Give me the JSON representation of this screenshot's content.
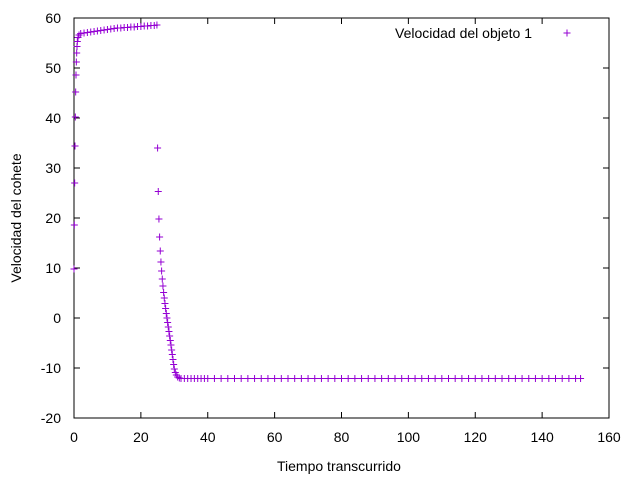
{
  "chart_data": {
    "type": "scatter",
    "title": "",
    "xlabel": "Tiempo transcurrido",
    "ylabel": "Velocidad del cohete",
    "xlim": [
      0,
      160
    ],
    "ylim": [
      -20,
      60
    ],
    "xticks": [
      0,
      20,
      40,
      60,
      80,
      100,
      120,
      140,
      160
    ],
    "yticks": [
      -20,
      -10,
      0,
      10,
      20,
      30,
      40,
      50,
      60
    ],
    "x_tick_labels": [
      "0",
      "20",
      "40",
      "60",
      "80",
      "100",
      "120",
      "140",
      "160"
    ],
    "y_tick_labels": [
      "-20",
      "-10",
      "0",
      "10",
      "20",
      "30",
      "40",
      "50",
      "60"
    ],
    "grid": false,
    "legend_position": "top-right",
    "marker": "plus",
    "series": [
      {
        "name": "Velocidad del objeto 1",
        "color": "#9400d3",
        "points": [
          [
            0.0,
            9.8
          ],
          [
            0.1,
            18.6
          ],
          [
            0.2,
            27.0
          ],
          [
            0.3,
            34.4
          ],
          [
            0.4,
            40.2
          ],
          [
            0.5,
            45.2
          ],
          [
            0.6,
            48.6
          ],
          [
            0.7,
            51.2
          ],
          [
            0.8,
            53.0
          ],
          [
            0.9,
            54.3
          ],
          [
            1.0,
            55.3
          ],
          [
            1.2,
            56.1
          ],
          [
            1.5,
            56.6
          ],
          [
            2.0,
            56.9
          ],
          [
            3.0,
            57.0
          ],
          [
            4.0,
            57.1
          ],
          [
            5.0,
            57.2
          ],
          [
            6.0,
            57.3
          ],
          [
            7.0,
            57.4
          ],
          [
            8.0,
            57.5
          ],
          [
            9.0,
            57.6
          ],
          [
            10.0,
            57.7
          ],
          [
            11.0,
            57.8
          ],
          [
            12.0,
            57.9
          ],
          [
            13.0,
            58.0
          ],
          [
            14.0,
            58.0
          ],
          [
            15.0,
            58.1
          ],
          [
            16.0,
            58.1
          ],
          [
            17.0,
            58.2
          ],
          [
            18.0,
            58.2
          ],
          [
            19.0,
            58.3
          ],
          [
            20.0,
            58.3
          ],
          [
            21.0,
            58.4
          ],
          [
            22.0,
            58.4
          ],
          [
            23.0,
            58.5
          ],
          [
            24.0,
            58.5
          ],
          [
            24.8,
            58.6
          ],
          [
            25.0,
            34.0
          ],
          [
            25.2,
            25.3
          ],
          [
            25.4,
            19.8
          ],
          [
            25.6,
            16.2
          ],
          [
            25.8,
            13.4
          ],
          [
            26.0,
            11.2
          ],
          [
            26.2,
            9.4
          ],
          [
            26.4,
            7.8
          ],
          [
            26.6,
            6.4
          ],
          [
            26.8,
            5.1
          ],
          [
            27.0,
            4.0
          ],
          [
            27.2,
            2.9
          ],
          [
            27.4,
            1.9
          ],
          [
            27.6,
            0.9
          ],
          [
            27.8,
            0.0
          ],
          [
            28.0,
            -0.9
          ],
          [
            28.2,
            -1.8
          ],
          [
            28.4,
            -2.7
          ],
          [
            28.6,
            -3.6
          ],
          [
            28.8,
            -4.5
          ],
          [
            29.0,
            -5.4
          ],
          [
            29.2,
            -6.4
          ],
          [
            29.4,
            -7.3
          ],
          [
            29.6,
            -8.3
          ],
          [
            29.8,
            -9.3
          ],
          [
            30.0,
            -10.2
          ],
          [
            30.3,
            -10.9
          ],
          [
            30.6,
            -11.4
          ],
          [
            31.0,
            -11.8
          ],
          [
            31.5,
            -12.0
          ],
          [
            32.0,
            -12.1
          ],
          [
            33.0,
            -12.1
          ],
          [
            34.0,
            -12.1
          ],
          [
            35.0,
            -12.1
          ],
          [
            36.0,
            -12.1
          ],
          [
            37.0,
            -12.1
          ],
          [
            38.0,
            -12.1
          ],
          [
            39.0,
            -12.1
          ],
          [
            40.0,
            -12.1
          ],
          [
            42.0,
            -12.1
          ],
          [
            44.0,
            -12.1
          ],
          [
            46.0,
            -12.1
          ],
          [
            48.0,
            -12.1
          ],
          [
            50.0,
            -12.1
          ],
          [
            52.0,
            -12.1
          ],
          [
            54.0,
            -12.1
          ],
          [
            56.0,
            -12.1
          ],
          [
            58.0,
            -12.1
          ],
          [
            60.0,
            -12.1
          ],
          [
            62.0,
            -12.1
          ],
          [
            64.0,
            -12.1
          ],
          [
            66.0,
            -12.1
          ],
          [
            68.0,
            -12.1
          ],
          [
            70.0,
            -12.1
          ],
          [
            72.0,
            -12.1
          ],
          [
            74.0,
            -12.1
          ],
          [
            76.0,
            -12.1
          ],
          [
            78.0,
            -12.1
          ],
          [
            80.0,
            -12.1
          ],
          [
            82.0,
            -12.1
          ],
          [
            84.0,
            -12.1
          ],
          [
            86.0,
            -12.1
          ],
          [
            88.0,
            -12.1
          ],
          [
            90.0,
            -12.1
          ],
          [
            92.0,
            -12.1
          ],
          [
            94.0,
            -12.1
          ],
          [
            96.0,
            -12.1
          ],
          [
            98.0,
            -12.1
          ],
          [
            100.0,
            -12.1
          ],
          [
            102.0,
            -12.1
          ],
          [
            104.0,
            -12.1
          ],
          [
            106.0,
            -12.1
          ],
          [
            108.0,
            -12.1
          ],
          [
            110.0,
            -12.1
          ],
          [
            112.0,
            -12.1
          ],
          [
            114.0,
            -12.1
          ],
          [
            116.0,
            -12.1
          ],
          [
            118.0,
            -12.1
          ],
          [
            120.0,
            -12.1
          ],
          [
            122.0,
            -12.1
          ],
          [
            124.0,
            -12.1
          ],
          [
            126.0,
            -12.1
          ],
          [
            128.0,
            -12.1
          ],
          [
            130.0,
            -12.1
          ],
          [
            132.0,
            -12.1
          ],
          [
            134.0,
            -12.1
          ],
          [
            136.0,
            -12.1
          ],
          [
            138.0,
            -12.1
          ],
          [
            140.0,
            -12.1
          ],
          [
            142.0,
            -12.1
          ],
          [
            144.0,
            -12.1
          ],
          [
            146.0,
            -12.1
          ],
          [
            148.0,
            -12.1
          ],
          [
            150.0,
            -12.1
          ],
          [
            151.5,
            -12.1
          ]
        ]
      }
    ]
  }
}
